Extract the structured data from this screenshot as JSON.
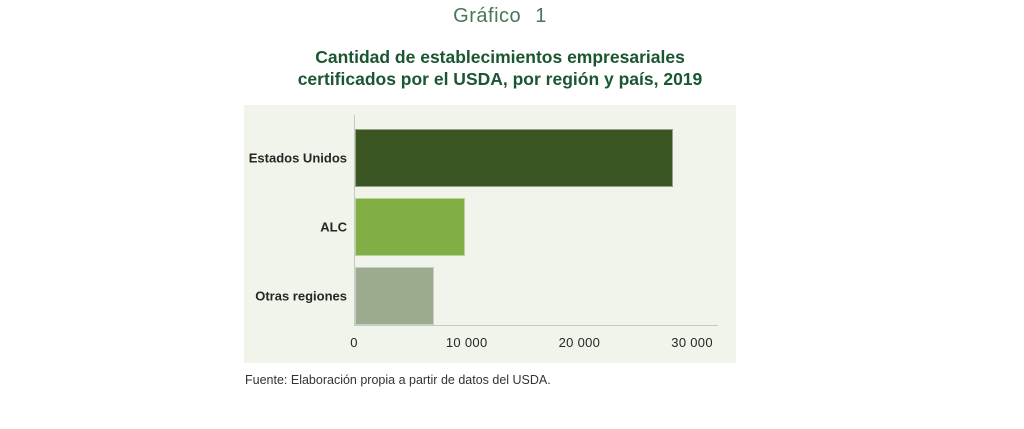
{
  "page": {
    "kicker": "Gráfico 1",
    "title_line1": "Cantidad de establecimientos empresariales",
    "title_line2": "certificados por el USDA, por región y país, 2019",
    "source": "Fuente: Elaboración propia a partir de datos del USDA."
  },
  "colors": {
    "kicker_green": "#437a57",
    "title_green": "#1a5632",
    "panel_bg": "#f0f4ea",
    "axis_line": "#c2ccc0",
    "text_dark": "#262626"
  },
  "chart_data": {
    "type": "bar",
    "orientation": "horizontal",
    "title": "Cantidad de establecimientos empresariales certificados por el USDA, por región y país, 2019",
    "categories": [
      "Estados Unidos",
      "ALC",
      "Otras regiones"
    ],
    "values": [
      28250,
      9800,
      7000
    ],
    "bar_colors": [
      "#3b5622",
      "#81ae45",
      "#9cab8e"
    ],
    "x_ticks": [
      0,
      10000,
      20000,
      30000
    ],
    "x_tick_labels": [
      "0",
      "10 000",
      "20 000",
      "30 000"
    ],
    "xlim": [
      0,
      32300
    ],
    "xlabel": "",
    "ylabel": "",
    "grid": false,
    "legend": false,
    "source": "Fuente: Elaboración propia a partir de datos del USDA."
  }
}
